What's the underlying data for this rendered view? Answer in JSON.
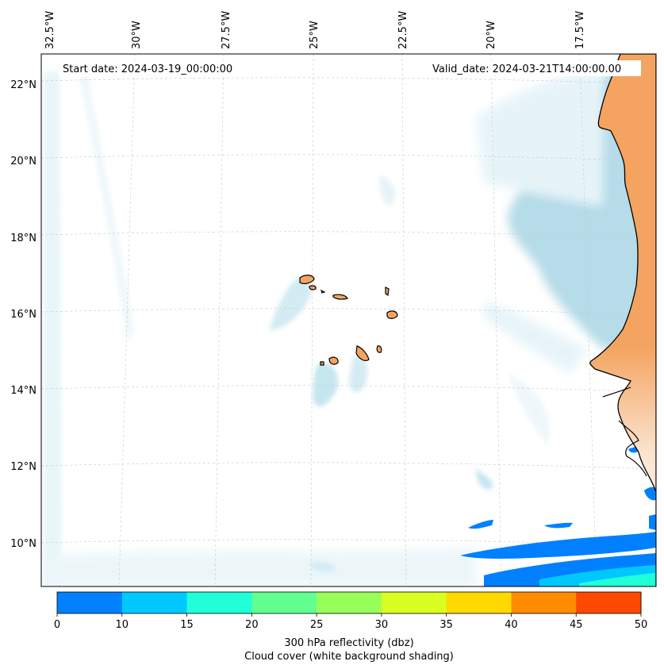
{
  "annotations": {
    "start_date": "Start date: 2024-03-19_00:00:00",
    "valid_date": "Valid_date: 2024-03-21T14:00:00.00"
  },
  "longitude_labels": [
    "32.5°W",
    "30°W",
    "27.5°W",
    "25°W",
    "22.5°W",
    "20°W",
    "17.5°W"
  ],
  "latitude_labels": [
    "22°N",
    "20°N",
    "18°N",
    "16°N",
    "14°N",
    "12°N",
    "10°N"
  ],
  "colorbar": {
    "ticks": [
      "0",
      "10",
      "15",
      "20",
      "25",
      "30",
      "35",
      "40",
      "45",
      "50"
    ],
    "colors": [
      "#0080ff",
      "#00c8ff",
      "#20ffd8",
      "#60ff90",
      "#98ff58",
      "#d8ff20",
      "#ffd800",
      "#ff8c00",
      "#ff4800"
    ],
    "label_line1": "300 hPa reflectivity (dbz)",
    "label_line2": "Cloud cover (white background shading)"
  },
  "colors": {
    "land": "#f4a460",
    "cloud": "#add8e6",
    "grid": "#c8c8c8",
    "coast": "#000000"
  }
}
